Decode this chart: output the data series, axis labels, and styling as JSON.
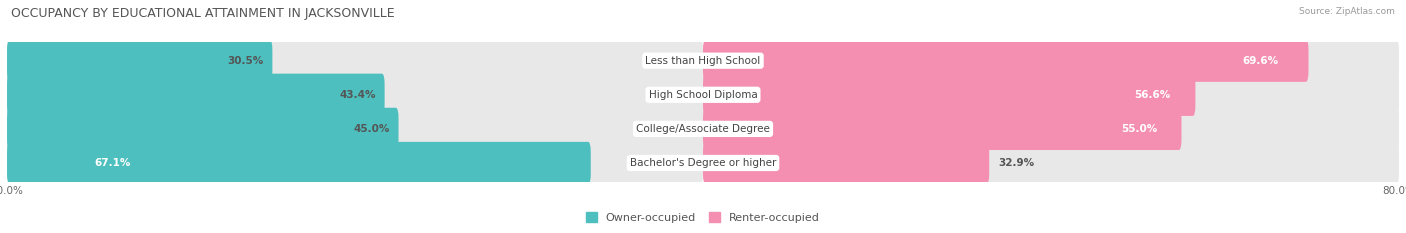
{
  "title": "OCCUPANCY BY EDUCATIONAL ATTAINMENT IN JACKSONVILLE",
  "source": "Source: ZipAtlas.com",
  "categories": [
    "Less than High School",
    "High School Diploma",
    "College/Associate Degree",
    "Bachelor's Degree or higher"
  ],
  "owner_values": [
    30.5,
    43.4,
    45.0,
    67.1
  ],
  "renter_values": [
    69.6,
    56.6,
    55.0,
    32.9
  ],
  "owner_color": "#4DBFBF",
  "renter_color": "#F48FB1",
  "bar_bg_color": "#E8E8E8",
  "owner_label": "Owner-occupied",
  "renter_label": "Renter-occupied",
  "xlim": 80.0,
  "background_color": "#FFFFFF",
  "bar_height": 0.62,
  "title_fontsize": 9.0,
  "value_fontsize": 7.5,
  "cat_fontsize": 7.5,
  "axis_label_fontsize": 7.5,
  "legend_fontsize": 8.0,
  "inside_threshold": 55.0
}
